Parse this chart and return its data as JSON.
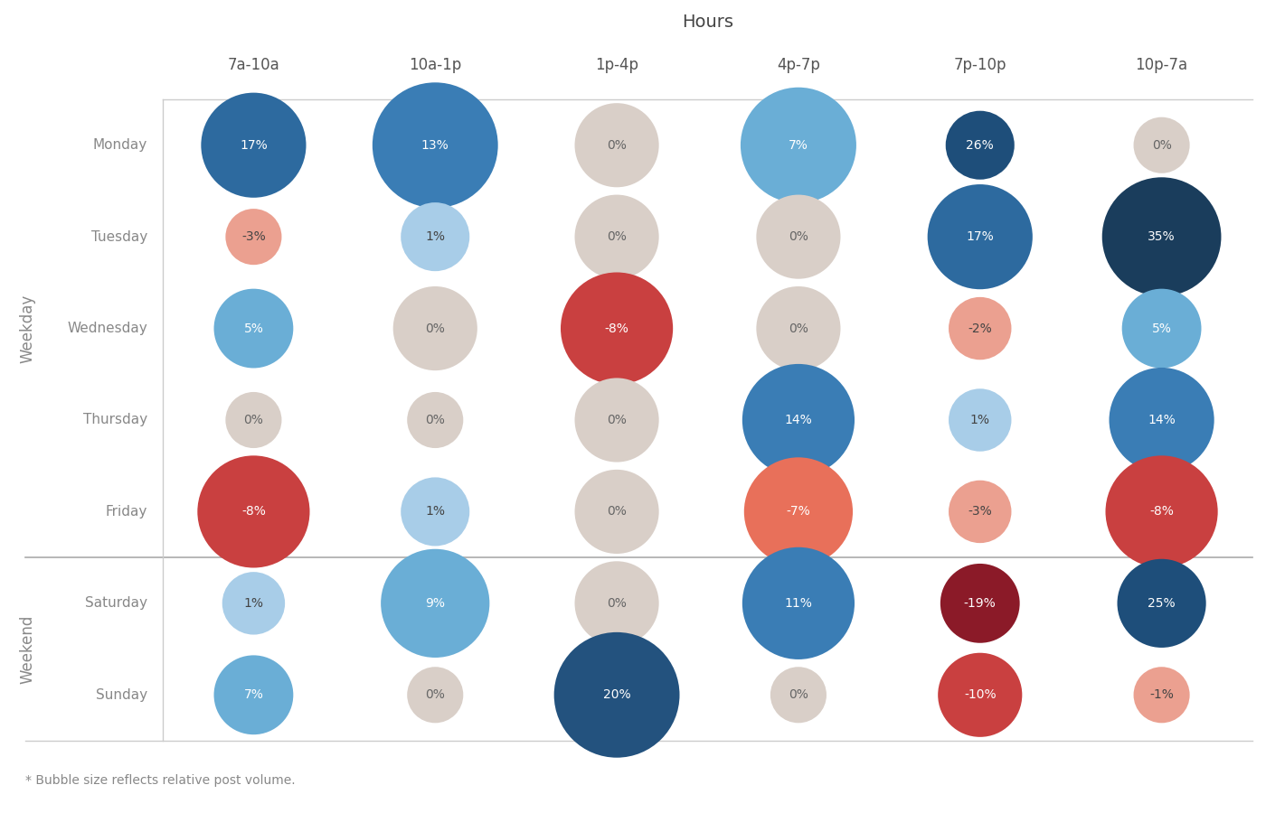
{
  "title": "Hours",
  "col_labels": [
    "7a-10a",
    "10a-1p",
    "1p-4p",
    "4p-7p",
    "7p-10p",
    "10p-7a"
  ],
  "row_labels": [
    "Monday",
    "Tuesday",
    "Wednesday",
    "Thursday",
    "Friday",
    "Saturday",
    "Sunday"
  ],
  "weekday_label": "Weekday",
  "weekend_label": "Weekend",
  "footnote": "* Bubble size reflects relative post volume.",
  "values": [
    [
      17,
      13,
      0,
      7,
      26,
      0
    ],
    [
      -3,
      1,
      0,
      0,
      17,
      35
    ],
    [
      5,
      0,
      -8,
      0,
      -2,
      5
    ],
    [
      0,
      0,
      0,
      14,
      1,
      14
    ],
    [
      -8,
      1,
      0,
      -7,
      -3,
      -8
    ],
    [
      1,
      9,
      0,
      11,
      -19,
      25
    ],
    [
      7,
      0,
      20,
      0,
      -10,
      -1
    ]
  ],
  "bubble_sizes": [
    [
      1400,
      2000,
      900,
      1700,
      600,
      400
    ],
    [
      400,
      600,
      900,
      900,
      1400,
      1800
    ],
    [
      800,
      900,
      1600,
      900,
      500,
      800
    ],
    [
      400,
      400,
      900,
      1600,
      500,
      1400
    ],
    [
      1600,
      600,
      900,
      1500,
      500,
      1600
    ],
    [
      500,
      1500,
      900,
      1600,
      800,
      1000
    ],
    [
      800,
      400,
      2000,
      400,
      900,
      400
    ]
  ],
  "background_color": "#ffffff",
  "grid_color": "#cccccc",
  "separator_color": "#aaaaaa",
  "text_color": "#888888",
  "title_color": "#444444",
  "row_label_color": "#888888",
  "col_label_color": "#555555"
}
